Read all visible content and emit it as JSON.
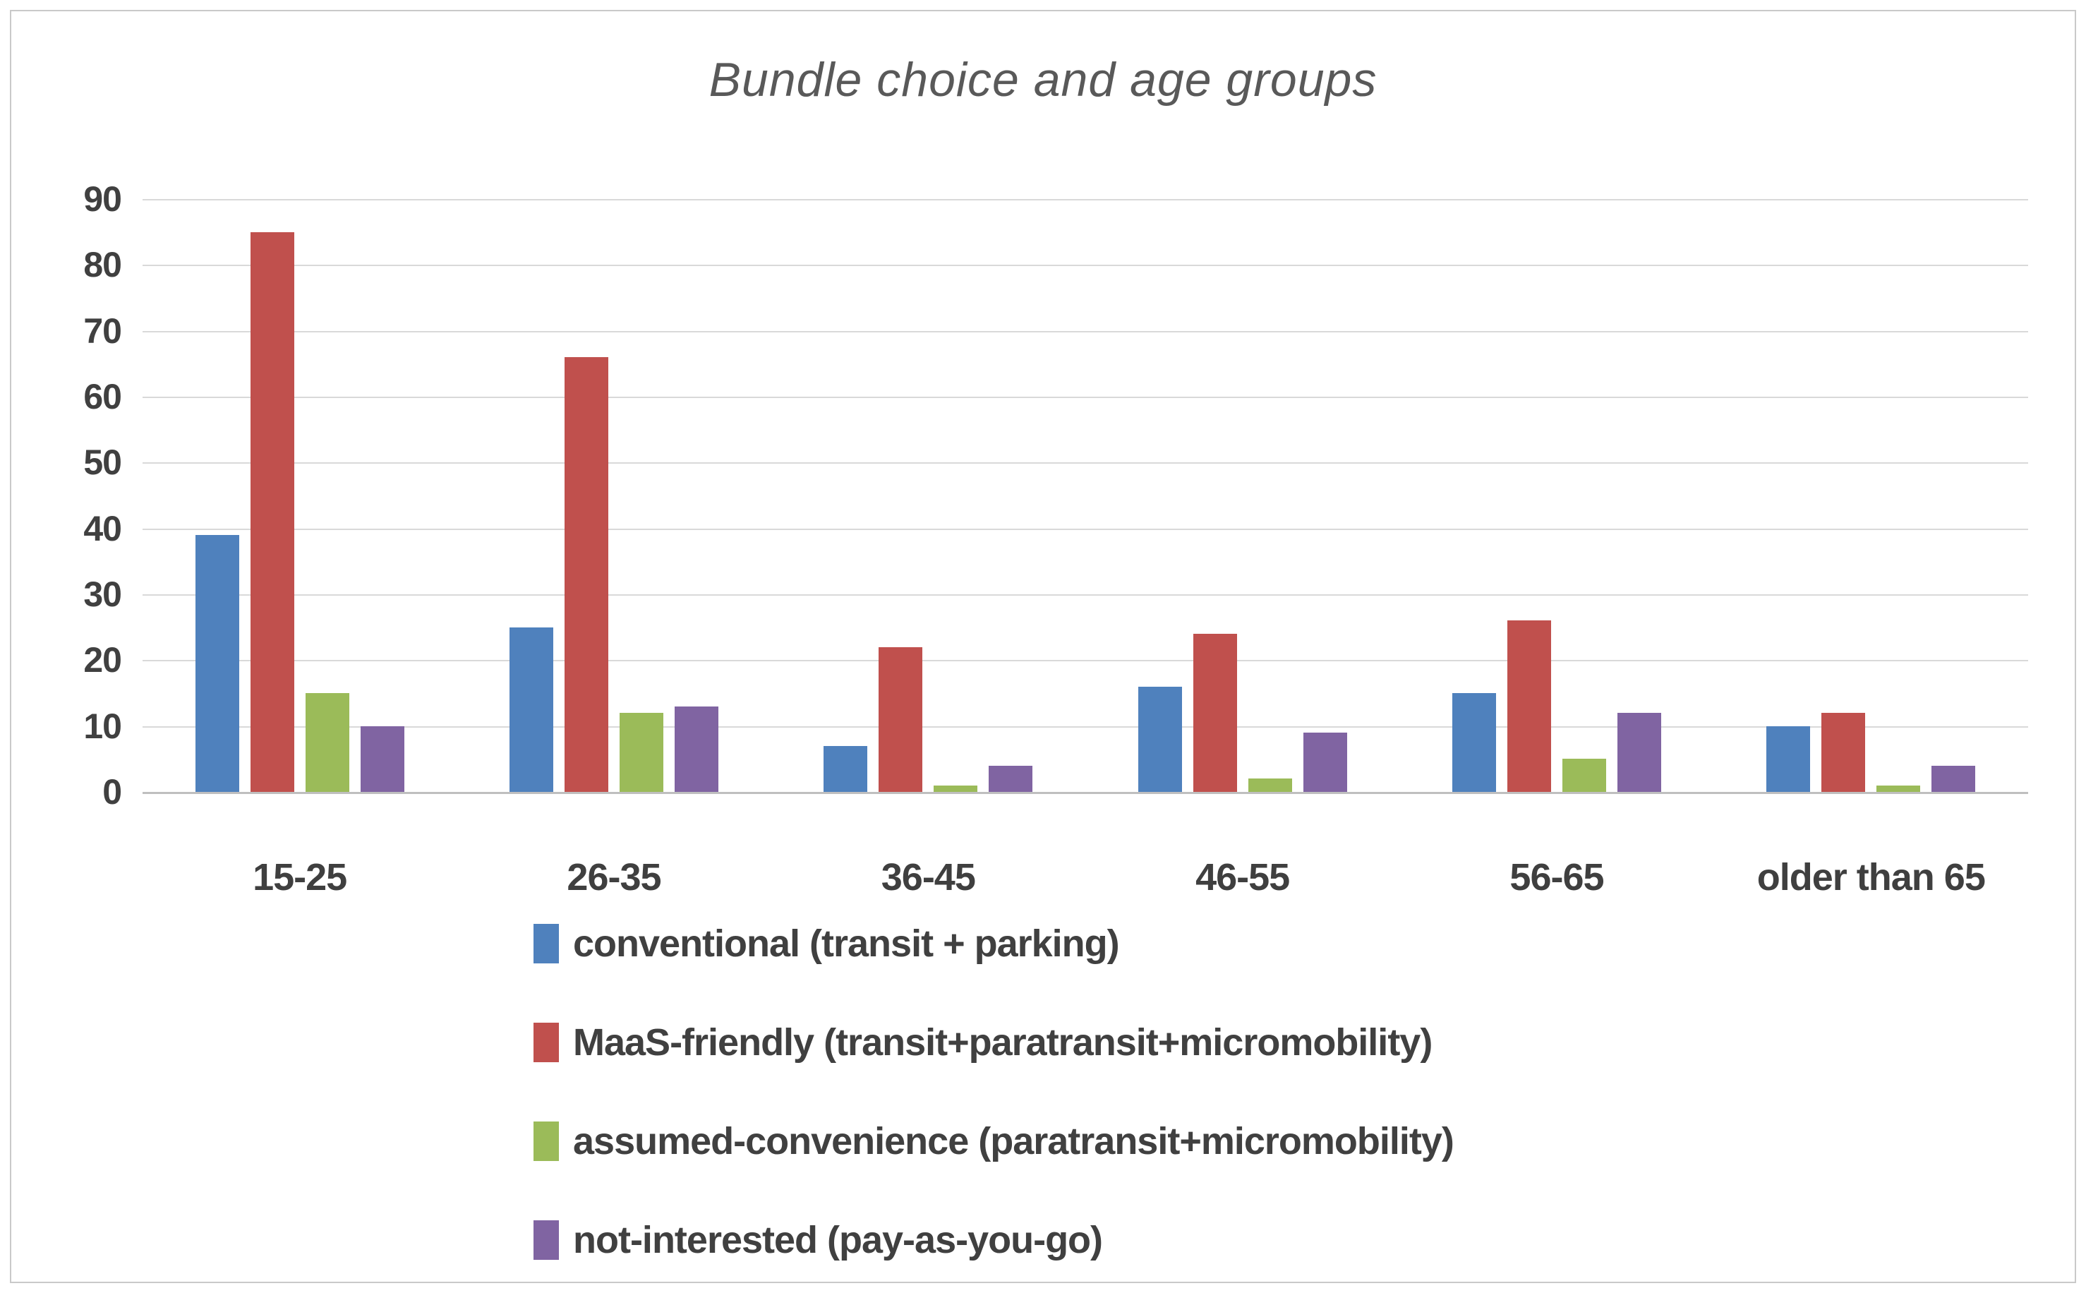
{
  "chart_data": {
    "type": "bar",
    "title": "Bundle choice and age groups",
    "categories": [
      "15-25",
      "26-35",
      "36-45",
      "46-55",
      "56-65",
      "older than 65"
    ],
    "series": [
      {
        "name": "conventional (transit + parking)",
        "color": "#4F81BD",
        "values": [
          39,
          25,
          7,
          16,
          15,
          10
        ]
      },
      {
        "name": "MaaS-friendly (transit+paratransit+micromobility)",
        "color": "#C0504D",
        "values": [
          85,
          66,
          22,
          24,
          26,
          12
        ]
      },
      {
        "name": "assumed-convenience (paratransit+micromobility)",
        "color": "#9BBB59",
        "values": [
          15,
          12,
          1,
          2,
          5,
          1
        ]
      },
      {
        "name": "not-interested (pay-as-you-go)",
        "color": "#8064A2",
        "values": [
          10,
          13,
          4,
          9,
          12,
          4
        ]
      }
    ],
    "xlabel": "",
    "ylabel": "",
    "ylim": [
      0,
      90
    ],
    "ytick_step": 10,
    "yticks": [
      90,
      80,
      70,
      60,
      50,
      40,
      30,
      20,
      10,
      0
    ],
    "grid": "horizontal-only",
    "legend_position": "bottom-left",
    "colors": {
      "title_text": "#595959",
      "tick_text": "#404040",
      "category_text": "#3f3f3f",
      "legend_text": "#404040",
      "gridline": "#d9d9d9",
      "axis_baseline": "#bfbfbf",
      "frame_border": "#c9c9c9",
      "background": "#ffffff"
    }
  }
}
